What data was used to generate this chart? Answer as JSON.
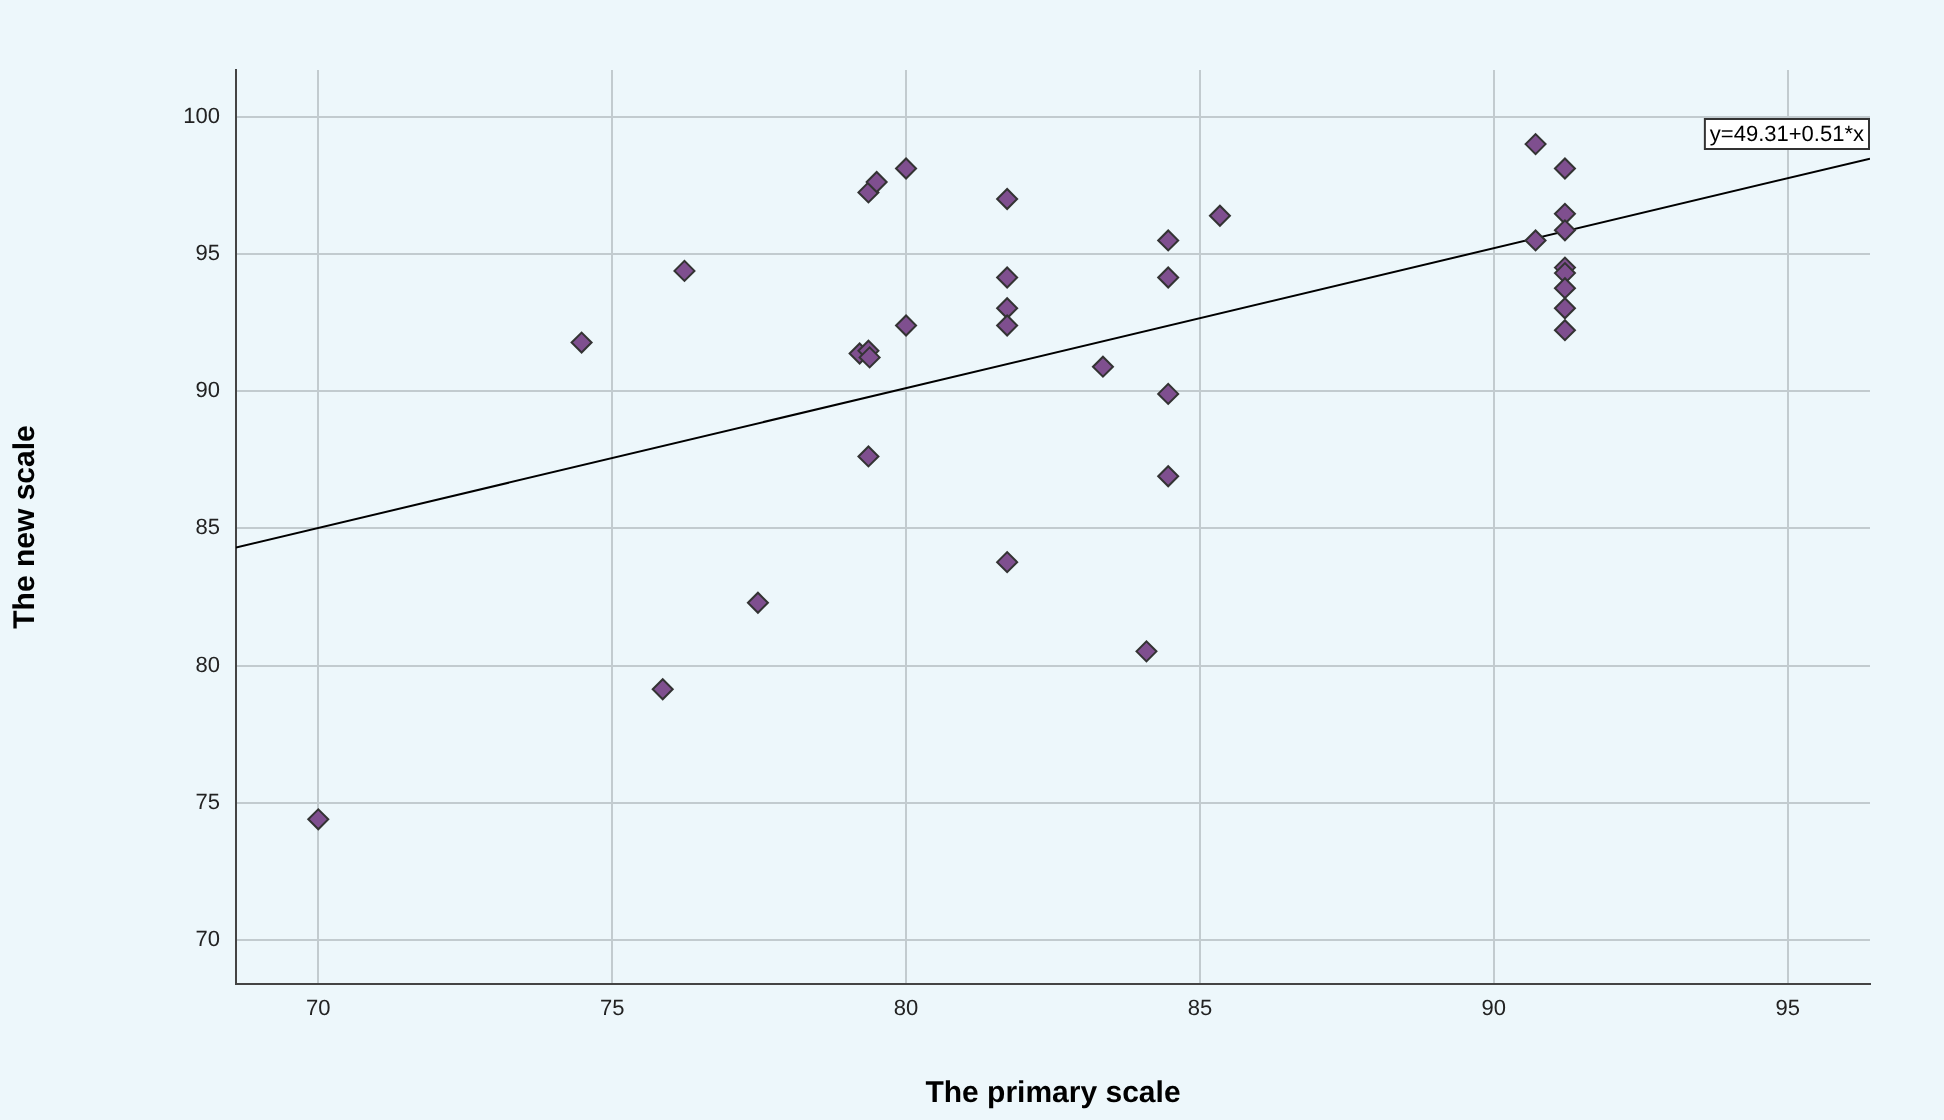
{
  "chart_data": {
    "type": "scatter",
    "xlabel": "The primary scale",
    "ylabel": "The new scale",
    "marker": "diamond",
    "grid": true,
    "legend": false,
    "xlim": [
      68.6,
      96.4
    ],
    "xticks": [
      70,
      75,
      80,
      85,
      90,
      95
    ],
    "ylim": [
      68.4,
      101.7
    ],
    "yticks": [
      70,
      75,
      80,
      85,
      90,
      95,
      100
    ],
    "annotations": [
      "y=49.31+0.51*x"
    ],
    "series": [
      {
        "color": "#7f4f8f",
        "x": [
          70,
          74.48,
          76.23,
          77.48,
          75.86,
          79.36,
          79.5,
          80,
          79.21,
          79.36,
          79.38,
          80,
          79.36,
          81.72,
          81.72,
          81.72,
          81.72,
          81.72,
          83.35,
          84.46,
          84.46,
          84.46,
          84.46,
          84.09,
          85.34,
          90.71,
          90.71,
          91.21,
          91.21,
          91.21,
          91.21,
          91.21,
          91.21,
          91.21,
          91.21
        ],
        "values": [
          74.4,
          91.77,
          94.38,
          82.29,
          79.14,
          97.24,
          97.62,
          98.11,
          91.37,
          91.47,
          91.23,
          92.39,
          87.62,
          97.0,
          94.14,
          93.02,
          92.39,
          83.77,
          90.89,
          95.49,
          94.14,
          89.9,
          86.9,
          80.52,
          96.39,
          99.0,
          95.49,
          98.11,
          96.46,
          95.86,
          94.5,
          94.3,
          93.75,
          93.02,
          92.22
        ]
      },
      {
        "type": "line",
        "marker": "none",
        "color": "#000000",
        "x": [
          68.6,
          96.4
        ],
        "values": [
          84.3,
          98.47
        ]
      }
    ]
  }
}
